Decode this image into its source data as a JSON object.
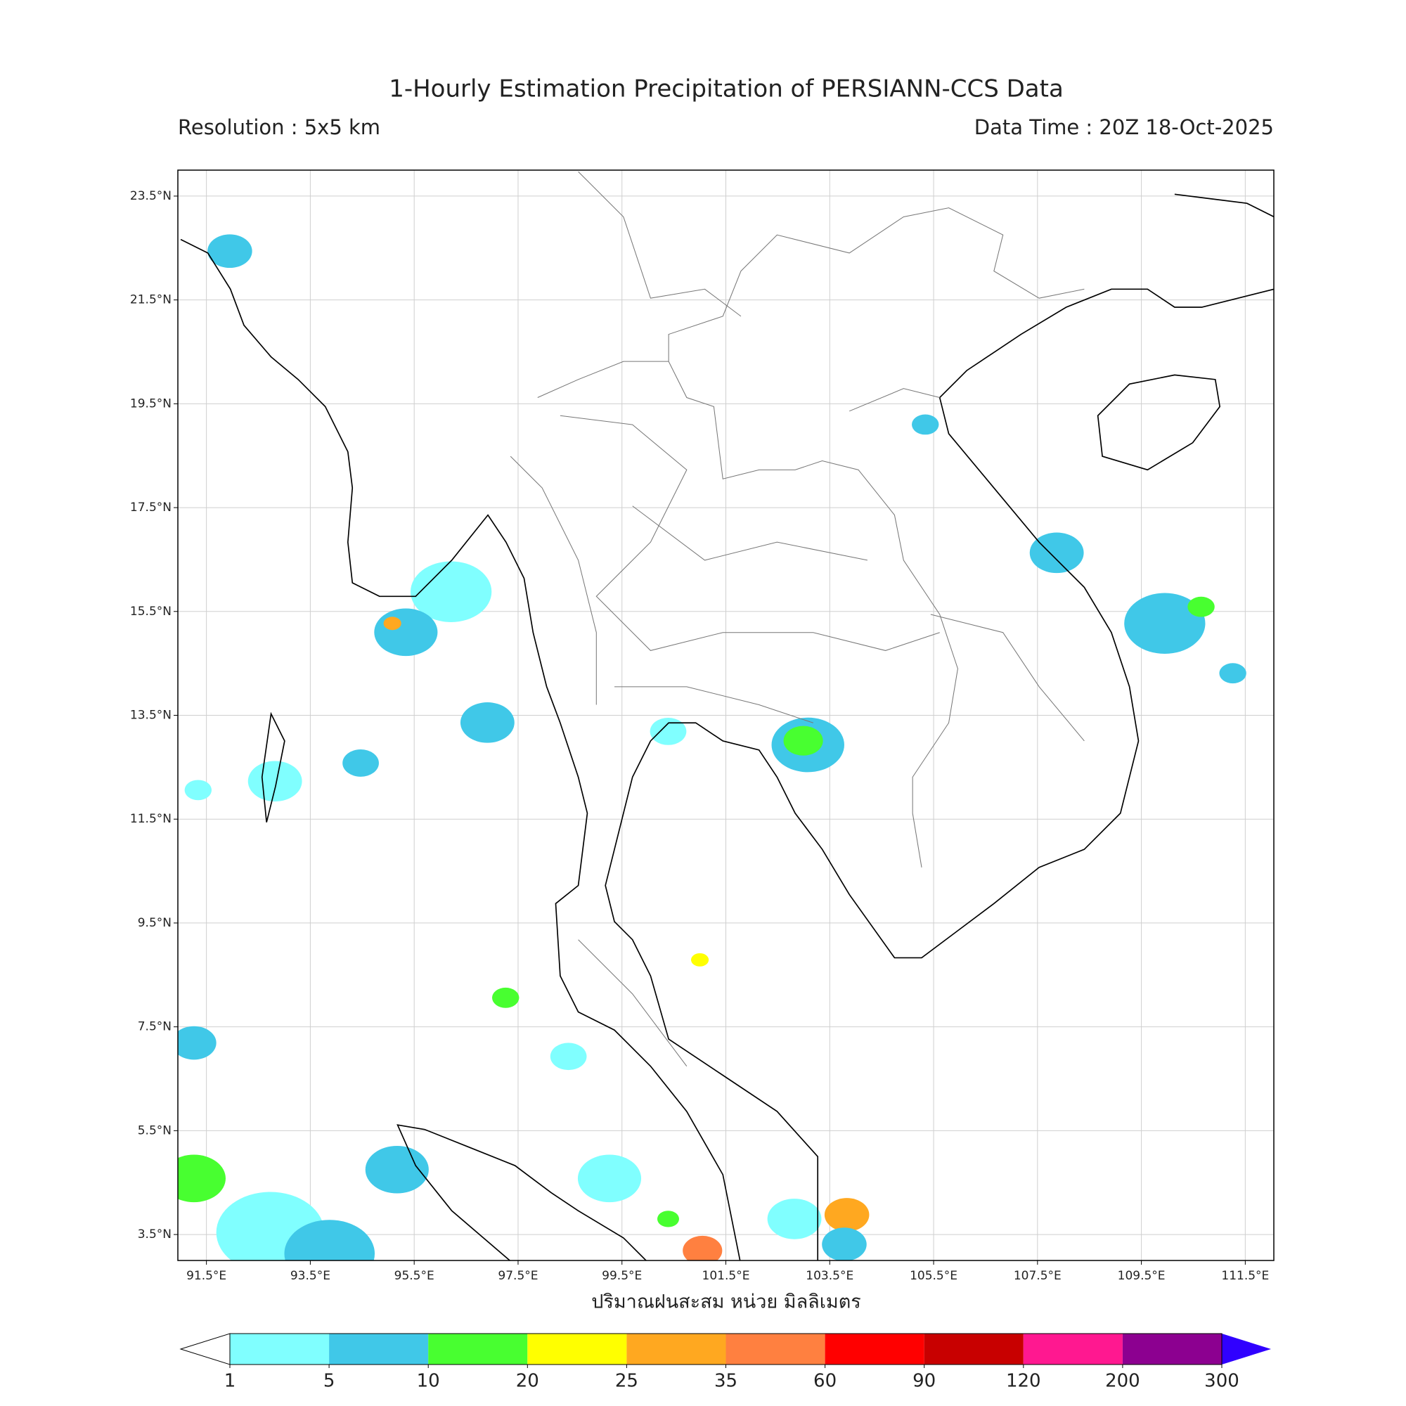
{
  "map": {
    "title": "1-Hourly Estimation Precipitation of PERSIANN-CCS Data",
    "subtitle_left": "Resolution : 5x5 km",
    "subtitle_right": "Data Time : 20Z 18-Oct-2025",
    "xlabel": "ปริมาณฝนสะสม หน่วย มิลลิเมตร",
    "xlim": [
      90.95,
      112.05
    ],
    "ylim": [
      3.0,
      24.0
    ],
    "xticks": [
      {
        "value": 91.5,
        "label": "91.5°E"
      },
      {
        "value": 93.5,
        "label": "93.5°E"
      },
      {
        "value": 95.5,
        "label": "95.5°E"
      },
      {
        "value": 97.5,
        "label": "97.5°E"
      },
      {
        "value": 99.5,
        "label": "99.5°E"
      },
      {
        "value": 101.5,
        "label": "101.5°E"
      },
      {
        "value": 103.5,
        "label": "103.5°E"
      },
      {
        "value": 105.5,
        "label": "105.5°E"
      },
      {
        "value": 107.5,
        "label": "107.5°E"
      },
      {
        "value": 109.5,
        "label": "109.5°E"
      },
      {
        "value": 111.5,
        "label": "111.5°E"
      }
    ],
    "yticks": [
      {
        "value": 3.5,
        "label": "3.5°N"
      },
      {
        "value": 5.5,
        "label": "5.5°N"
      },
      {
        "value": 7.5,
        "label": "7.5°N"
      },
      {
        "value": 9.5,
        "label": "9.5°N"
      },
      {
        "value": 11.5,
        "label": "11.5°N"
      },
      {
        "value": 13.5,
        "label": "13.5°N"
      },
      {
        "value": 15.5,
        "label": "15.5°N"
      },
      {
        "value": 17.5,
        "label": "17.5°N"
      },
      {
        "value": 19.5,
        "label": "19.5°N"
      },
      {
        "value": 21.5,
        "label": "21.5°N"
      },
      {
        "value": 23.5,
        "label": "23.5°N"
      }
    ],
    "grid": true,
    "colorbar": {
      "bounds": [
        1,
        5,
        10,
        20,
        25,
        35,
        60,
        90,
        120,
        200,
        300
      ],
      "colors": [
        "#80ffff",
        "#40c8e8",
        "#48ff30",
        "#ffff00",
        "#ffa820",
        "#ff8040",
        "#ff0000",
        "#c80000",
        "#ff1890",
        "#8c0090"
      ],
      "under_color": "#ffffff",
      "over_color": "#3000ff"
    },
    "cells": [
      {
        "lon": 91.95,
        "lat": 22.44,
        "size_deg": 0.43,
        "mm": 5
      },
      {
        "lon": 96.21,
        "lat": 15.88,
        "size_deg": 0.78,
        "mm": 3
      },
      {
        "lon": 95.34,
        "lat": 15.1,
        "size_deg": 0.61,
        "mm": 5
      },
      {
        "lon": 95.08,
        "lat": 15.27,
        "size_deg": 0.17,
        "mm": 25
      },
      {
        "lon": 96.91,
        "lat": 13.36,
        "size_deg": 0.52,
        "mm": 5
      },
      {
        "lon": 103.08,
        "lat": 12.93,
        "size_deg": 0.7,
        "mm": 5
      },
      {
        "lon": 102.99,
        "lat": 13.01,
        "size_deg": 0.38,
        "mm": 10
      },
      {
        "lon": 100.39,
        "lat": 13.19,
        "size_deg": 0.35,
        "mm": 3
      },
      {
        "lon": 92.82,
        "lat": 12.23,
        "size_deg": 0.52,
        "mm": 3
      },
      {
        "lon": 94.47,
        "lat": 12.58,
        "size_deg": 0.35,
        "mm": 5
      },
      {
        "lon": 91.34,
        "lat": 12.06,
        "size_deg": 0.26,
        "mm": 3
      },
      {
        "lon": 107.87,
        "lat": 16.63,
        "size_deg": 0.52,
        "mm": 5
      },
      {
        "lon": 109.95,
        "lat": 15.27,
        "size_deg": 0.78,
        "mm": 5
      },
      {
        "lon": 110.65,
        "lat": 15.59,
        "size_deg": 0.26,
        "mm": 10
      },
      {
        "lon": 105.34,
        "lat": 19.1,
        "size_deg": 0.26,
        "mm": 5
      },
      {
        "lon": 91.26,
        "lat": 7.19,
        "size_deg": 0.43,
        "mm": 5
      },
      {
        "lon": 91.26,
        "lat": 4.58,
        "size_deg": 0.61,
        "mm": 10
      },
      {
        "lon": 92.73,
        "lat": 3.54,
        "size_deg": 1.04,
        "mm": 3
      },
      {
        "lon": 93.87,
        "lat": 3.13,
        "size_deg": 0.87,
        "mm": 5
      },
      {
        "lon": 95.17,
        "lat": 4.75,
        "size_deg": 0.61,
        "mm": 5
      },
      {
        "lon": 99.26,
        "lat": 4.58,
        "size_deg": 0.61,
        "mm": 3
      },
      {
        "lon": 101.05,
        "lat": 3.19,
        "size_deg": 0.38,
        "mm": 35
      },
      {
        "lon": 100.39,
        "lat": 3.8,
        "size_deg": 0.21,
        "mm": 10
      },
      {
        "lon": 103.83,
        "lat": 3.88,
        "size_deg": 0.43,
        "mm": 25
      },
      {
        "lon": 102.82,
        "lat": 3.8,
        "size_deg": 0.52,
        "mm": 3
      },
      {
        "lon": 103.78,
        "lat": 3.31,
        "size_deg": 0.43,
        "mm": 5
      },
      {
        "lon": 98.47,
        "lat": 6.93,
        "size_deg": 0.35,
        "mm": 3
      },
      {
        "lon": 97.26,
        "lat": 8.06,
        "size_deg": 0.26,
        "mm": 10
      },
      {
        "lon": 111.26,
        "lat": 14.31,
        "size_deg": 0.26,
        "mm": 5
      },
      {
        "lon": 101.0,
        "lat": 8.79,
        "size_deg": 0.17,
        "mm": 20
      }
    ]
  }
}
